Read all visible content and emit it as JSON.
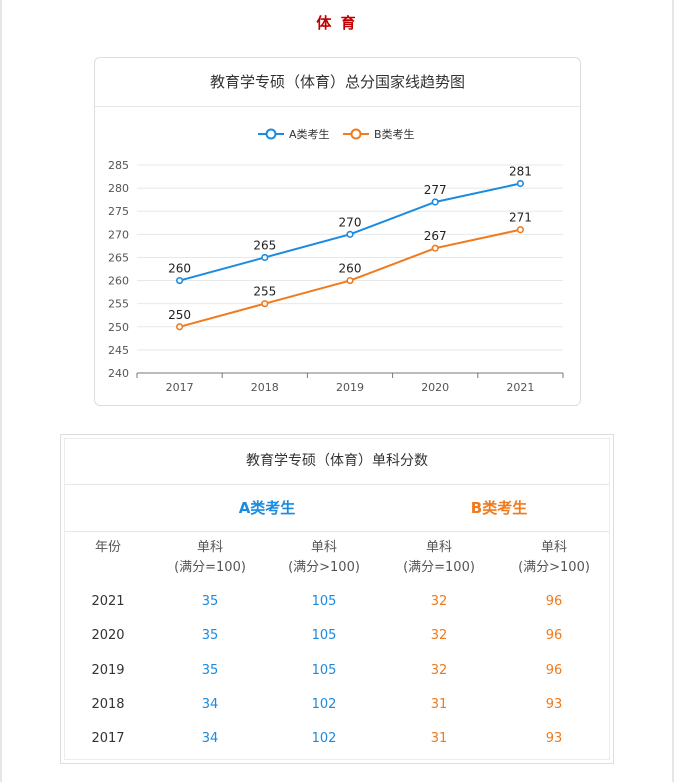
{
  "page_title": "体 育",
  "chart_title": "教育学专硕（体育）总分国家线趋势图",
  "chart_data": {
    "type": "line",
    "title": "教育学专硕（体育）总分国家线趋势图",
    "x": [
      "2017",
      "2018",
      "2019",
      "2020",
      "2021"
    ],
    "series": [
      {
        "name": "A类考生",
        "values": [
          260,
          265,
          270,
          277,
          281
        ],
        "color": "#1a8be0"
      },
      {
        "name": "B类考生",
        "values": [
          250,
          255,
          260,
          267,
          271
        ],
        "color": "#f07a1c"
      }
    ],
    "ylim": [
      240,
      285
    ],
    "yticks": [
      240,
      245,
      250,
      255,
      260,
      265,
      270,
      275,
      280,
      285
    ],
    "grid": true,
    "legend": "top-center",
    "data_labels": true
  },
  "table": {
    "title": "教育学专硕（体育）单科分数",
    "group_a": "A类考生",
    "group_b": "B类考生",
    "headers": [
      {
        "line1": "年份",
        "line2": ""
      },
      {
        "line1": "单科",
        "line2": "(满分=100)"
      },
      {
        "line1": "单科",
        "line2": "(满分>100)"
      },
      {
        "line1": "单科",
        "line2": "(满分=100)"
      },
      {
        "line1": "单科",
        "line2": "(满分>100)"
      }
    ],
    "rows": [
      {
        "year": "2021",
        "a100": "35",
        "a_over": "105",
        "b100": "32",
        "b_over": "96"
      },
      {
        "year": "2020",
        "a100": "35",
        "a_over": "105",
        "b100": "32",
        "b_over": "96"
      },
      {
        "year": "2019",
        "a100": "35",
        "a_over": "105",
        "b100": "32",
        "b_over": "96"
      },
      {
        "year": "2018",
        "a100": "34",
        "a_over": "102",
        "b100": "31",
        "b_over": "93"
      },
      {
        "year": "2017",
        "a100": "34",
        "a_over": "102",
        "b100": "31",
        "b_over": "93"
      }
    ]
  }
}
